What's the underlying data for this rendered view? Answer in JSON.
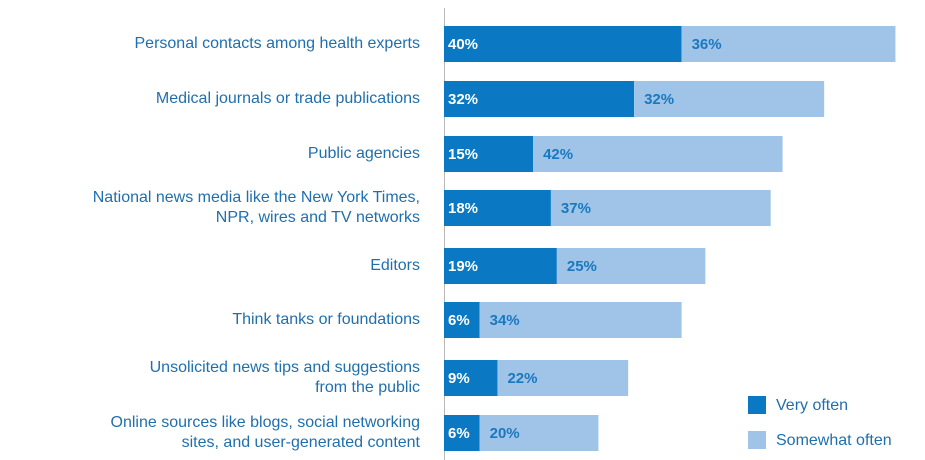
{
  "chart_data": {
    "type": "stacked_barh",
    "categories": [
      [
        "Personal contacts among health experts"
      ],
      [
        "Medical journals or trade publications"
      ],
      [
        "Public agencies"
      ],
      [
        "National news media like the New York Times,",
        "NPR, wires and TV networks"
      ],
      [
        "Editors"
      ],
      [
        "Think tanks or foundations"
      ],
      [
        "Unsolicited news tips and suggestions",
        "from the public"
      ],
      [
        "Online sources like blogs, social networking",
        "sites, and user-generated content"
      ]
    ],
    "series": [
      {
        "name": "Very often",
        "color": "#0a78c2",
        "label_color": "#ffffff",
        "values": [
          40,
          32,
          15,
          18,
          19,
          6,
          9,
          6
        ],
        "value_labels": [
          "40%",
          "32%",
          "15%",
          "18%",
          "19%",
          "6%",
          "9%",
          "6%"
        ]
      },
      {
        "name": "Somewhat often",
        "color": "#9fc4e7",
        "label_color": "#1a78c0",
        "values": [
          36,
          32,
          42,
          37,
          25,
          34,
          22,
          20
        ],
        "value_labels": [
          "36%",
          "32%",
          "42%",
          "37%",
          "25%",
          "34%",
          "22%",
          "20%"
        ]
      }
    ]
  }
}
